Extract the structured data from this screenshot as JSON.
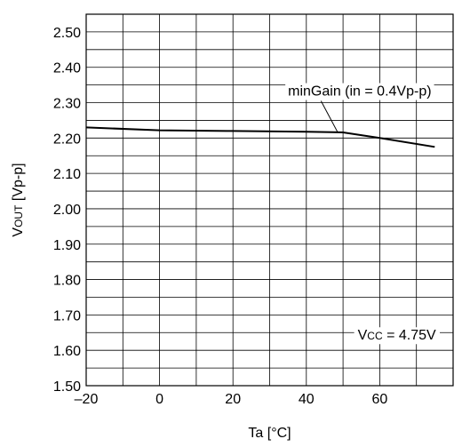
{
  "chart_data": {
    "type": "line",
    "title": "",
    "xlabel": "Ta [°C]",
    "ylabel": {
      "main": "V",
      "sub": "OUT",
      "unit": " [Vp-p]"
    },
    "xlim": [
      -20,
      80
    ],
    "ylim": [
      1.5,
      2.55
    ],
    "x_ticks": [
      -20,
      0,
      20,
      40,
      60
    ],
    "x_tick_labels": [
      "–20",
      "0",
      "20",
      "40",
      "60"
    ],
    "y_ticks": [
      1.5,
      1.6,
      1.7,
      1.8,
      1.9,
      2.0,
      2.1,
      2.2,
      2.3,
      2.4,
      2.5
    ],
    "y_tick_labels": [
      "1.50",
      "1.60",
      "1.70",
      "1.80",
      "1.90",
      "2.00",
      "2.10",
      "2.20",
      "2.30",
      "2.40",
      "2.50"
    ],
    "grid": true,
    "series": [
      {
        "name": "minGain (in = 0.4Vp-p)",
        "x": [
          -20,
          0,
          20,
          40,
          50,
          60,
          75
        ],
        "y": [
          2.23,
          2.222,
          2.22,
          2.218,
          2.216,
          2.2,
          2.175
        ]
      }
    ],
    "annotations": {
      "series_label": "minGain (in = 0.4Vp-p)",
      "condition_label": {
        "main": "V",
        "sub": "CC",
        "rest": " = 4.75V"
      }
    }
  }
}
